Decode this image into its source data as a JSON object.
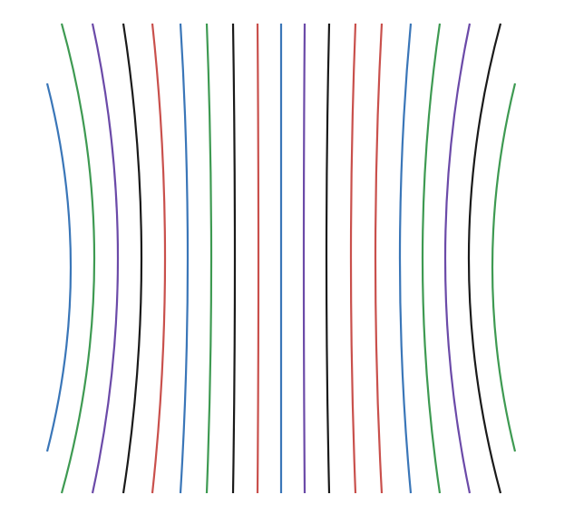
{
  "figure": {
    "background": "#ffffff",
    "palette": {
      "blue": "#3a76b8",
      "green": "#3e9a52",
      "purple": "#6b4aa8",
      "black": "#1a1a1a",
      "red": "#c9504c"
    },
    "curves": [
      {
        "id": "curve-01",
        "color": "blue"
      },
      {
        "id": "curve-02",
        "color": "green"
      },
      {
        "id": "curve-03",
        "color": "purple"
      },
      {
        "id": "curve-04",
        "color": "black"
      },
      {
        "id": "curve-05",
        "color": "red"
      },
      {
        "id": "curve-06",
        "color": "blue"
      },
      {
        "id": "curve-07",
        "color": "green"
      },
      {
        "id": "curve-08",
        "color": "black"
      },
      {
        "id": "curve-09",
        "color": "red"
      },
      {
        "id": "curve-10",
        "color": "blue"
      },
      {
        "id": "curve-11",
        "color": "purple"
      },
      {
        "id": "curve-12",
        "color": "black"
      },
      {
        "id": "curve-13",
        "color": "red"
      },
      {
        "id": "curve-14",
        "color": "red"
      },
      {
        "id": "curve-15",
        "color": "blue"
      },
      {
        "id": "curve-16",
        "color": "green"
      },
      {
        "id": "curve-17",
        "color": "purple"
      },
      {
        "id": "curve-18",
        "color": "black"
      },
      {
        "id": "curve-19",
        "color": "green"
      }
    ]
  }
}
